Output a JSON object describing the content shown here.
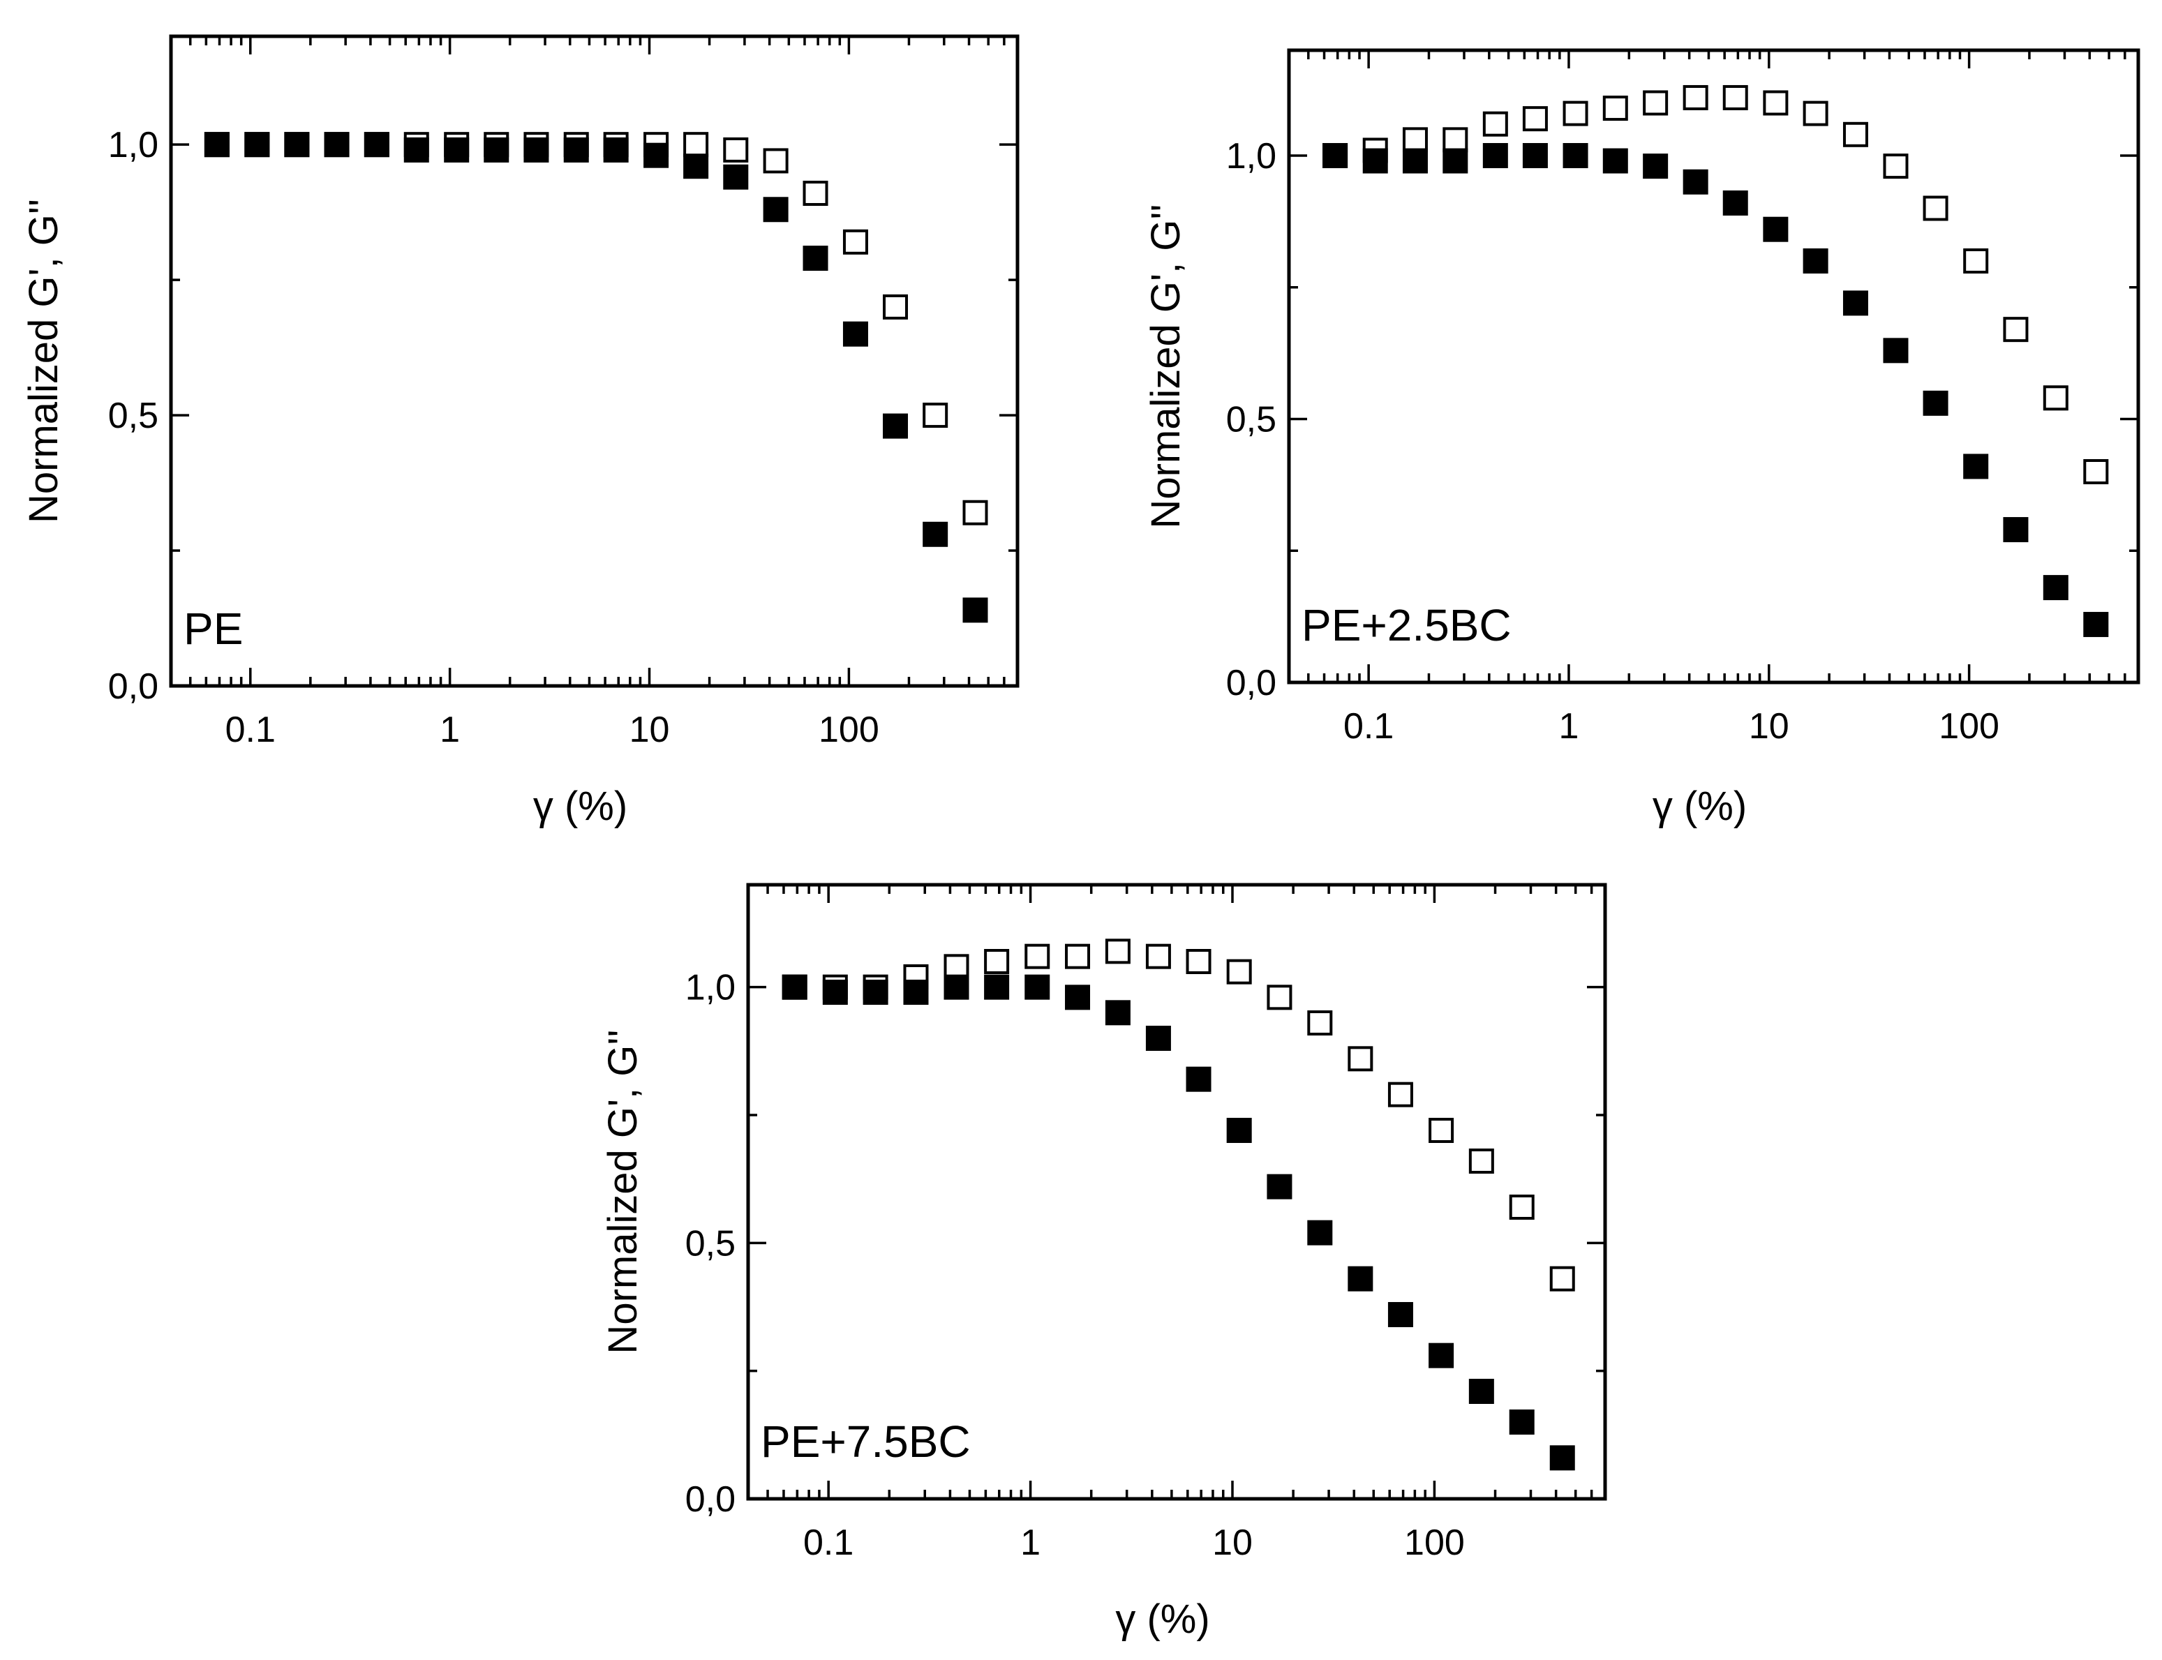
{
  "chart_data": [
    {
      "type": "scatter",
      "panel_label": "PE",
      "xlabel": "γ (%)",
      "ylabel": "Normalized G', G''",
      "xscale": "log",
      "xlim": [
        0.04,
        700
      ],
      "ylim": [
        0.0,
        1.2
      ],
      "x_tick_values": [
        0.1,
        1,
        10,
        100
      ],
      "x_tick_labels": [
        "0.1",
        "1",
        "10",
        "100"
      ],
      "y_tick_values": [
        0.0,
        0.5,
        1.0
      ],
      "y_tick_labels": [
        "0,0",
        "0,5",
        "1,0"
      ],
      "series": [
        {
          "name": "G'",
          "marker": "filled-square",
          "x": [
            0.068,
            0.108,
            0.171,
            0.271,
            0.43,
            0.68,
            1.08,
            1.71,
            2.71,
            4.3,
            6.8,
            10.8,
            17.1,
            27.1,
            43,
            68,
            108,
            171,
            271,
            430
          ],
          "y": [
            1.0,
            1.0,
            1.0,
            1.0,
            1.0,
            0.99,
            0.99,
            0.99,
            0.99,
            0.99,
            0.99,
            0.98,
            0.96,
            0.94,
            0.88,
            0.79,
            0.65,
            0.48,
            0.28,
            0.14
          ]
        },
        {
          "name": "G''",
          "marker": "open-square",
          "x": [
            0.068,
            0.108,
            0.171,
            0.271,
            0.43,
            0.68,
            1.08,
            1.71,
            2.71,
            4.3,
            6.8,
            10.8,
            17.1,
            27.1,
            43,
            68,
            108,
            171,
            271,
            430
          ],
          "y": [
            1.0,
            1.0,
            1.0,
            1.0,
            1.0,
            1.0,
            1.0,
            1.0,
            1.0,
            1.0,
            1.0,
            1.0,
            1.0,
            0.99,
            0.97,
            0.91,
            0.82,
            0.7,
            0.5,
            0.32
          ]
        }
      ]
    },
    {
      "type": "scatter",
      "panel_label": "PE+2.5BC",
      "xlabel": "γ (%)",
      "ylabel": "Normalized G', G''",
      "xscale": "log",
      "xlim": [
        0.04,
        700
      ],
      "ylim": [
        0.0,
        1.2
      ],
      "x_tick_values": [
        0.1,
        1,
        10,
        100
      ],
      "x_tick_labels": [
        "0.1",
        "1",
        "10",
        "100"
      ],
      "y_tick_values": [
        0.0,
        0.5,
        1.0
      ],
      "y_tick_labels": [
        "0,0",
        "0,5",
        "1,0"
      ],
      "series": [
        {
          "name": "G'",
          "marker": "filled-square",
          "x": [
            0.068,
            0.108,
            0.171,
            0.271,
            0.43,
            0.68,
            1.08,
            1.71,
            2.71,
            4.3,
            6.8,
            10.8,
            17.1,
            27.1,
            43,
            68,
            108,
            171,
            271,
            430
          ],
          "y": [
            1.0,
            0.99,
            0.99,
            0.99,
            1.0,
            1.0,
            1.0,
            0.99,
            0.98,
            0.95,
            0.91,
            0.86,
            0.8,
            0.72,
            0.63,
            0.53,
            0.41,
            0.29,
            0.18,
            0.11
          ]
        },
        {
          "name": "G''",
          "marker": "open-square",
          "x": [
            0.068,
            0.108,
            0.171,
            0.271,
            0.43,
            0.68,
            1.08,
            1.71,
            2.71,
            4.3,
            6.8,
            10.8,
            17.1,
            27.1,
            43,
            68,
            108,
            171,
            271,
            430
          ],
          "y": [
            1.0,
            1.01,
            1.03,
            1.03,
            1.06,
            1.07,
            1.08,
            1.09,
            1.1,
            1.11,
            1.11,
            1.1,
            1.08,
            1.04,
            0.98,
            0.9,
            0.8,
            0.67,
            0.54,
            0.4
          ]
        }
      ]
    },
    {
      "type": "scatter",
      "panel_label": "PE+7.5BC",
      "xlabel": "γ (%)",
      "ylabel": "Normalized G', G''",
      "xscale": "log",
      "xlim": [
        0.04,
        700
      ],
      "ylim": [
        0.0,
        1.2
      ],
      "x_tick_values": [
        0.1,
        1,
        10,
        100
      ],
      "x_tick_labels": [
        "0.1",
        "1",
        "10",
        "100"
      ],
      "y_tick_values": [
        0.0,
        0.5,
        1.0
      ],
      "y_tick_labels": [
        "0,0",
        "0,5",
        "1,0"
      ],
      "series": [
        {
          "name": "G'",
          "marker": "filled-square",
          "x": [
            0.068,
            0.108,
            0.171,
            0.271,
            0.43,
            0.68,
            1.08,
            1.71,
            2.71,
            4.3,
            6.8,
            10.8,
            17.1,
            27.1,
            43,
            68,
            108,
            171,
            271,
            430
          ],
          "y": [
            1.0,
            0.99,
            0.99,
            0.99,
            1.0,
            1.0,
            1.0,
            0.98,
            0.95,
            0.9,
            0.82,
            0.72,
            0.61,
            0.52,
            0.43,
            0.36,
            0.28,
            0.21,
            0.15,
            0.08
          ]
        },
        {
          "name": "G''",
          "marker": "open-square",
          "x": [
            0.068,
            0.108,
            0.171,
            0.271,
            0.43,
            0.68,
            1.08,
            1.71,
            2.71,
            4.3,
            6.8,
            10.8,
            17.1,
            27.1,
            43,
            68,
            108,
            171,
            271,
            430
          ],
          "y": [
            1.0,
            1.0,
            1.0,
            1.02,
            1.04,
            1.05,
            1.06,
            1.06,
            1.07,
            1.06,
            1.05,
            1.03,
            0.98,
            0.93,
            0.86,
            0.79,
            0.72,
            0.66,
            0.57,
            0.43
          ]
        }
      ]
    }
  ]
}
